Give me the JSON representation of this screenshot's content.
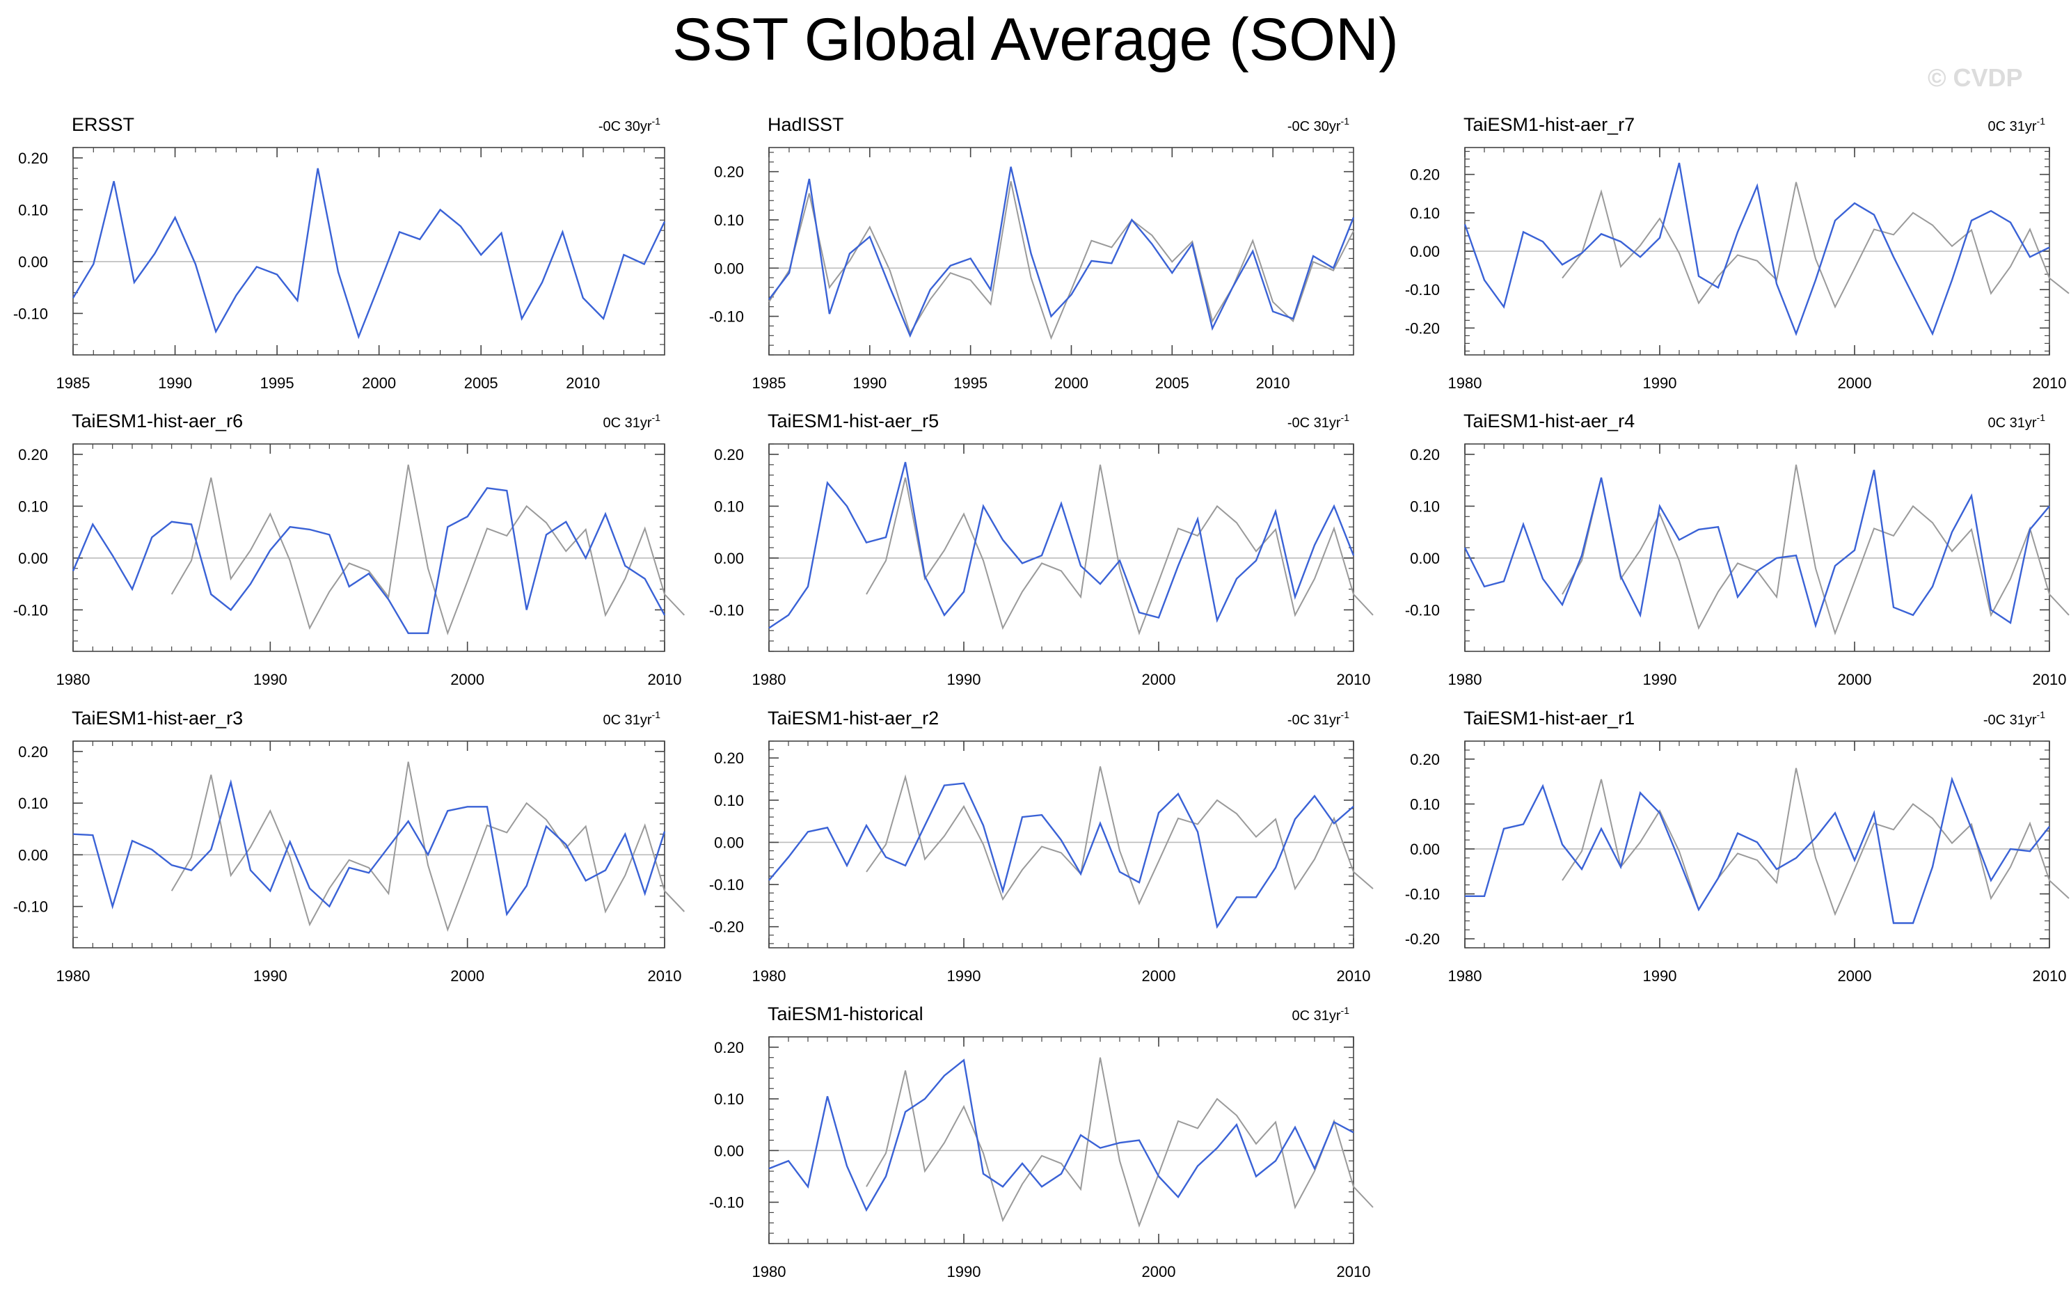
{
  "figure": {
    "title": "SST Global Average (SON)",
    "watermark": "© CVDP"
  },
  "colors": {
    "model": "#3a62d6",
    "obs": "#9a9a9a",
    "zero": "#bbbbbb",
    "axis": "#444444"
  },
  "chart_data": [
    {
      "type": "line",
      "title": "ERSST",
      "trend_text": "-0C 30yr",
      "trend_sup": "-1",
      "xlim": [
        1985,
        2014
      ],
      "ylim": [
        -0.18,
        0.22
      ],
      "xticks": [
        1985,
        1990,
        1995,
        2000,
        2005,
        2010
      ],
      "yticks": [
        -0.1,
        0.0,
        0.1,
        0.2
      ],
      "ytick_labels": [
        "-0.10",
        "0.00",
        "0.10",
        "0.20"
      ],
      "series": [
        {
          "name": "ERSST",
          "role": "model",
          "x0": 1985,
          "values": [
            -0.07,
            -0.005,
            0.155,
            -0.04,
            0.015,
            0.085,
            -0.005,
            -0.135,
            -0.065,
            -0.01,
            -0.025,
            -0.075,
            0.18,
            -0.02,
            -0.145,
            -0.045,
            0.057,
            0.043,
            0.1,
            0.068,
            0.013,
            0.055,
            -0.11,
            -0.04,
            0.057,
            -0.07,
            -0.11,
            0.013,
            -0.005,
            0.077
          ]
        }
      ]
    },
    {
      "type": "line",
      "title": "HadISST",
      "trend_text": "-0C 30yr",
      "trend_sup": "-1",
      "xlim": [
        1985,
        2014
      ],
      "ylim": [
        -0.18,
        0.25
      ],
      "xticks": [
        1985,
        1990,
        1995,
        2000,
        2005,
        2010
      ],
      "yticks": [
        -0.1,
        0.0,
        0.1,
        0.2
      ],
      "ytick_labels": [
        "-0.10",
        "0.00",
        "0.10",
        "0.20"
      ],
      "series": [
        {
          "name": "ERSST",
          "role": "obs",
          "x0": 1985,
          "values": [
            -0.07,
            -0.005,
            0.155,
            -0.04,
            0.015,
            0.085,
            -0.005,
            -0.135,
            -0.065,
            -0.01,
            -0.025,
            -0.075,
            0.18,
            -0.02,
            -0.145,
            -0.045,
            0.057,
            0.043,
            0.1,
            0.068,
            0.013,
            0.055,
            -0.11,
            -0.04,
            0.057,
            -0.07,
            -0.11,
            0.013,
            -0.005,
            0.077
          ]
        },
        {
          "name": "HadISST",
          "role": "model",
          "x0": 1985,
          "values": [
            -0.065,
            -0.01,
            0.185,
            -0.095,
            0.03,
            0.065,
            -0.04,
            -0.14,
            -0.045,
            0.005,
            0.02,
            -0.045,
            0.21,
            0.03,
            -0.1,
            -0.055,
            0.015,
            0.01,
            0.1,
            0.05,
            -0.01,
            0.05,
            -0.125,
            -0.04,
            0.035,
            -0.09,
            -0.105,
            0.025,
            0.0,
            0.105
          ]
        }
      ]
    },
    {
      "type": "line",
      "title": "TaiESM1-hist-aer_r7",
      "trend_text": "0C 31yr",
      "trend_sup": "-1",
      "xlim": [
        1980,
        2010
      ],
      "ylim": [
        -0.27,
        0.27
      ],
      "xticks": [
        1980,
        1990,
        2000,
        2010
      ],
      "yticks": [
        -0.2,
        -0.1,
        0.0,
        0.1,
        0.2
      ],
      "ytick_labels": [
        "-0.20",
        "-0.10",
        "0.00",
        "0.10",
        "0.20"
      ],
      "series": [
        {
          "name": "ERSST",
          "role": "obs",
          "x0": 1985,
          "values": [
            -0.07,
            -0.005,
            0.155,
            -0.04,
            0.015,
            0.085,
            -0.005,
            -0.135,
            -0.065,
            -0.01,
            -0.025,
            -0.075,
            0.18,
            -0.02,
            -0.145,
            -0.045,
            0.057,
            0.043,
            0.1,
            0.068,
            0.013,
            0.055,
            -0.11,
            -0.04,
            0.057,
            -0.07,
            -0.11
          ]
        },
        {
          "name": "TaiESM1-hist-aer_r7",
          "role": "model",
          "x0": 1980,
          "values": [
            0.07,
            -0.075,
            -0.145,
            0.05,
            0.025,
            -0.035,
            -0.005,
            0.045,
            0.025,
            -0.015,
            0.035,
            0.23,
            -0.065,
            -0.095,
            0.05,
            0.17,
            -0.085,
            -0.215,
            -0.075,
            0.08,
            0.125,
            0.095,
            -0.015,
            -0.115,
            -0.215,
            -0.075,
            0.08,
            0.105,
            0.075,
            -0.015,
            0.01
          ]
        }
      ]
    },
    {
      "type": "line",
      "title": "TaiESM1-hist-aer_r6",
      "trend_text": "0C 31yr",
      "trend_sup": "-1",
      "xlim": [
        1980,
        2010
      ],
      "ylim": [
        -0.18,
        0.22
      ],
      "xticks": [
        1980,
        1990,
        2000,
        2010
      ],
      "yticks": [
        -0.1,
        0.0,
        0.1,
        0.2
      ],
      "ytick_labels": [
        "-0.10",
        "0.00",
        "0.10",
        "0.20"
      ],
      "series": [
        {
          "name": "ERSST",
          "role": "obs",
          "x0": 1985,
          "values": [
            -0.07,
            -0.005,
            0.155,
            -0.04,
            0.015,
            0.085,
            -0.005,
            -0.135,
            -0.065,
            -0.01,
            -0.025,
            -0.075,
            0.18,
            -0.02,
            -0.145,
            -0.045,
            0.057,
            0.043,
            0.1,
            0.068,
            0.013,
            0.055,
            -0.11,
            -0.04,
            0.057,
            -0.07,
            -0.11
          ]
        },
        {
          "name": "TaiESM1-hist-aer_r6",
          "role": "model",
          "x0": 1980,
          "values": [
            -0.025,
            0.065,
            0.005,
            -0.06,
            0.04,
            0.07,
            0.065,
            -0.07,
            -0.1,
            -0.05,
            0.015,
            0.06,
            0.055,
            0.045,
            -0.055,
            -0.03,
            -0.08,
            -0.145,
            -0.145,
            0.06,
            0.08,
            0.135,
            0.13,
            -0.1,
            0.045,
            0.07,
            0.0,
            0.085,
            -0.015,
            -0.04,
            -0.11
          ]
        }
      ]
    },
    {
      "type": "line",
      "title": "TaiESM1-hist-aer_r5",
      "trend_text": "-0C 31yr",
      "trend_sup": "-1",
      "xlim": [
        1980,
        2010
      ],
      "ylim": [
        -0.18,
        0.22
      ],
      "xticks": [
        1980,
        1990,
        2000,
        2010
      ],
      "yticks": [
        -0.1,
        0.0,
        0.1,
        0.2
      ],
      "ytick_labels": [
        "-0.10",
        "0.00",
        "0.10",
        "0.20"
      ],
      "series": [
        {
          "name": "ERSST",
          "role": "obs",
          "x0": 1985,
          "values": [
            -0.07,
            -0.005,
            0.155,
            -0.04,
            0.015,
            0.085,
            -0.005,
            -0.135,
            -0.065,
            -0.01,
            -0.025,
            -0.075,
            0.18,
            -0.02,
            -0.145,
            -0.045,
            0.057,
            0.043,
            0.1,
            0.068,
            0.013,
            0.055,
            -0.11,
            -0.04,
            0.057,
            -0.07,
            -0.11
          ]
        },
        {
          "name": "TaiESM1-hist-aer_r5",
          "role": "model",
          "x0": 1980,
          "values": [
            -0.135,
            -0.11,
            -0.055,
            0.145,
            0.1,
            0.03,
            0.04,
            0.185,
            -0.035,
            -0.11,
            -0.065,
            0.1,
            0.035,
            -0.01,
            0.005,
            0.105,
            -0.015,
            -0.05,
            -0.005,
            -0.105,
            -0.115,
            -0.015,
            0.075,
            -0.12,
            -0.04,
            -0.005,
            0.09,
            -0.075,
            0.025,
            0.1,
            0.005
          ]
        }
      ]
    },
    {
      "type": "line",
      "title": "TaiESM1-hist-aer_r4",
      "trend_text": "0C 31yr",
      "trend_sup": "-1",
      "xlim": [
        1980,
        2010
      ],
      "ylim": [
        -0.18,
        0.22
      ],
      "xticks": [
        1980,
        1990,
        2000,
        2010
      ],
      "yticks": [
        -0.1,
        0.0,
        0.1,
        0.2
      ],
      "ytick_labels": [
        "-0.10",
        "0.00",
        "0.10",
        "0.20"
      ],
      "series": [
        {
          "name": "ERSST",
          "role": "obs",
          "x0": 1985,
          "values": [
            -0.07,
            -0.005,
            0.155,
            -0.04,
            0.015,
            0.085,
            -0.005,
            -0.135,
            -0.065,
            -0.01,
            -0.025,
            -0.075,
            0.18,
            -0.02,
            -0.145,
            -0.045,
            0.057,
            0.043,
            0.1,
            0.068,
            0.013,
            0.055,
            -0.11,
            -0.04,
            0.057,
            -0.07,
            -0.11
          ]
        },
        {
          "name": "TaiESM1-hist-aer_r4",
          "role": "model",
          "x0": 1980,
          "values": [
            0.02,
            -0.055,
            -0.045,
            0.065,
            -0.04,
            -0.09,
            0.005,
            0.155,
            -0.035,
            -0.11,
            0.1,
            0.035,
            0.055,
            0.06,
            -0.075,
            -0.025,
            0.0,
            0.005,
            -0.13,
            -0.015,
            0.015,
            0.17,
            -0.095,
            -0.11,
            -0.055,
            0.05,
            0.12,
            -0.1,
            -0.125,
            0.055,
            0.1
          ]
        }
      ]
    },
    {
      "type": "line",
      "title": "TaiESM1-hist-aer_r3",
      "trend_text": "0C 31yr",
      "trend_sup": "-1",
      "xlim": [
        1980,
        2010
      ],
      "ylim": [
        -0.18,
        0.22
      ],
      "xticks": [
        1980,
        1990,
        2000,
        2010
      ],
      "yticks": [
        -0.1,
        0.0,
        0.1,
        0.2
      ],
      "ytick_labels": [
        "-0.10",
        "0.00",
        "0.10",
        "0.20"
      ],
      "series": [
        {
          "name": "ERSST",
          "role": "obs",
          "x0": 1985,
          "values": [
            -0.07,
            -0.005,
            0.155,
            -0.04,
            0.015,
            0.085,
            -0.005,
            -0.135,
            -0.065,
            -0.01,
            -0.025,
            -0.075,
            0.18,
            -0.02,
            -0.145,
            -0.045,
            0.057,
            0.043,
            0.1,
            0.068,
            0.013,
            0.055,
            -0.11,
            -0.04,
            0.057,
            -0.07,
            -0.11
          ]
        },
        {
          "name": "TaiESM1-hist-aer_r3",
          "role": "model",
          "x0": 1980,
          "values": [
            0.04,
            0.038,
            -0.1,
            0.027,
            0.01,
            -0.02,
            -0.03,
            0.01,
            0.14,
            -0.03,
            -0.07,
            0.025,
            -0.065,
            -0.1,
            -0.025,
            -0.035,
            0.015,
            0.065,
            0.0,
            0.085,
            0.093,
            0.093,
            -0.115,
            -0.06,
            0.055,
            0.02,
            -0.05,
            -0.03,
            0.04,
            -0.075,
            0.045
          ]
        }
      ]
    },
    {
      "type": "line",
      "title": "TaiESM1-hist-aer_r2",
      "trend_text": "-0C 31yr",
      "trend_sup": "-1",
      "xlim": [
        1980,
        2010
      ],
      "ylim": [
        -0.25,
        0.24
      ],
      "xticks": [
        1980,
        1990,
        2000,
        2010
      ],
      "yticks": [
        -0.2,
        -0.1,
        0.0,
        0.1,
        0.2
      ],
      "ytick_labels": [
        "-0.20",
        "-0.10",
        "0.00",
        "0.10",
        "0.20"
      ],
      "series": [
        {
          "name": "ERSST",
          "role": "obs",
          "x0": 1985,
          "values": [
            -0.07,
            -0.005,
            0.155,
            -0.04,
            0.015,
            0.085,
            -0.005,
            -0.135,
            -0.065,
            -0.01,
            -0.025,
            -0.075,
            0.18,
            -0.02,
            -0.145,
            -0.045,
            0.057,
            0.043,
            0.1,
            0.068,
            0.013,
            0.055,
            -0.11,
            -0.04,
            0.057,
            -0.07,
            -0.11
          ]
        },
        {
          "name": "TaiESM1-hist-aer_r2",
          "role": "model",
          "x0": 1980,
          "values": [
            -0.09,
            -0.035,
            0.025,
            0.035,
            -0.055,
            0.04,
            -0.035,
            -0.055,
            0.04,
            0.135,
            0.14,
            0.04,
            -0.115,
            0.06,
            0.065,
            0.005,
            -0.075,
            0.045,
            -0.07,
            -0.095,
            0.07,
            0.115,
            0.025,
            -0.2,
            -0.13,
            -0.13,
            -0.06,
            0.055,
            0.11,
            0.045,
            0.085
          ]
        }
      ]
    },
    {
      "type": "line",
      "title": "TaiESM1-hist-aer_r1",
      "trend_text": "-0C 31yr",
      "trend_sup": "-1",
      "xlim": [
        1980,
        2010
      ],
      "ylim": [
        -0.22,
        0.24
      ],
      "xticks": [
        1980,
        1990,
        2000,
        2010
      ],
      "yticks": [
        -0.2,
        -0.1,
        0.0,
        0.1,
        0.2
      ],
      "ytick_labels": [
        "-0.20",
        "-0.10",
        "0.00",
        "0.10",
        "0.20"
      ],
      "series": [
        {
          "name": "ERSST",
          "role": "obs",
          "x0": 1985,
          "values": [
            -0.07,
            -0.005,
            0.155,
            -0.04,
            0.015,
            0.085,
            -0.005,
            -0.135,
            -0.065,
            -0.01,
            -0.025,
            -0.075,
            0.18,
            -0.02,
            -0.145,
            -0.045,
            0.057,
            0.043,
            0.1,
            0.068,
            0.013,
            0.055,
            -0.11,
            -0.04,
            0.057,
            -0.07,
            -0.11
          ]
        },
        {
          "name": "TaiESM1-hist-aer_r1",
          "role": "model",
          "x0": 1980,
          "values": [
            -0.105,
            -0.105,
            0.045,
            0.055,
            0.14,
            0.01,
            -0.045,
            0.045,
            -0.04,
            0.125,
            0.08,
            -0.025,
            -0.135,
            -0.065,
            0.035,
            0.015,
            -0.045,
            -0.02,
            0.025,
            0.08,
            -0.025,
            0.08,
            -0.165,
            -0.165,
            -0.04,
            0.155,
            0.045,
            -0.07,
            0.0,
            -0.005,
            0.05
          ]
        }
      ]
    },
    {
      "type": "line",
      "title": "TaiESM1-historical",
      "trend_text": "0C 31yr",
      "trend_sup": "-1",
      "xlim": [
        1980,
        2010
      ],
      "ylim": [
        -0.18,
        0.22
      ],
      "xticks": [
        1980,
        1990,
        2000,
        2010
      ],
      "yticks": [
        -0.1,
        0.0,
        0.1,
        0.2
      ],
      "ytick_labels": [
        "-0.10",
        "0.00",
        "0.10",
        "0.20"
      ],
      "series": [
        {
          "name": "ERSST",
          "role": "obs",
          "x0": 1985,
          "values": [
            -0.07,
            -0.005,
            0.155,
            -0.04,
            0.015,
            0.085,
            -0.005,
            -0.135,
            -0.065,
            -0.01,
            -0.025,
            -0.075,
            0.18,
            -0.02,
            -0.145,
            -0.045,
            0.057,
            0.043,
            0.1,
            0.068,
            0.013,
            0.055,
            -0.11,
            -0.04,
            0.057,
            -0.07,
            -0.11
          ]
        },
        {
          "name": "TaiESM1-historical",
          "role": "model",
          "x0": 1980,
          "values": [
            -0.035,
            -0.02,
            -0.07,
            0.105,
            -0.03,
            -0.115,
            -0.05,
            0.075,
            0.1,
            0.145,
            0.175,
            -0.045,
            -0.07,
            -0.025,
            -0.07,
            -0.045,
            0.03,
            0.005,
            0.015,
            0.02,
            -0.05,
            -0.09,
            -0.03,
            0.005,
            0.05,
            -0.05,
            -0.02,
            0.045,
            -0.035,
            0.055,
            0.035
          ]
        }
      ]
    }
  ]
}
